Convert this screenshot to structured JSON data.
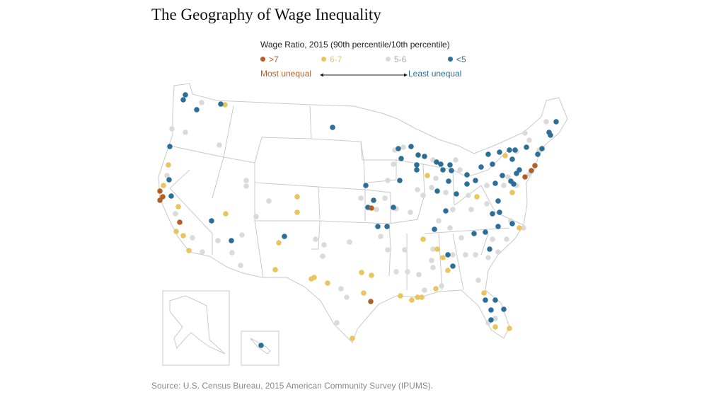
{
  "title": "The Geography of Wage Inequality",
  "legend": {
    "title": "Wage Ratio, 2015 (90th percentile/10th percentile)",
    "items": [
      {
        "label": ">7",
        "color": "#b0612a"
      },
      {
        "label": "6-7",
        "color": "#e8c55f"
      },
      {
        "label": "5-6",
        "color": "#dadada"
      },
      {
        "label": "<5",
        "color": "#2a6f97"
      }
    ],
    "most_unequal": "Most unequal",
    "least_unequal": "Least unequal"
  },
  "source": "Source: U.S. Census Bureau, 2015 American Community Survey (IPUMS)."
}
